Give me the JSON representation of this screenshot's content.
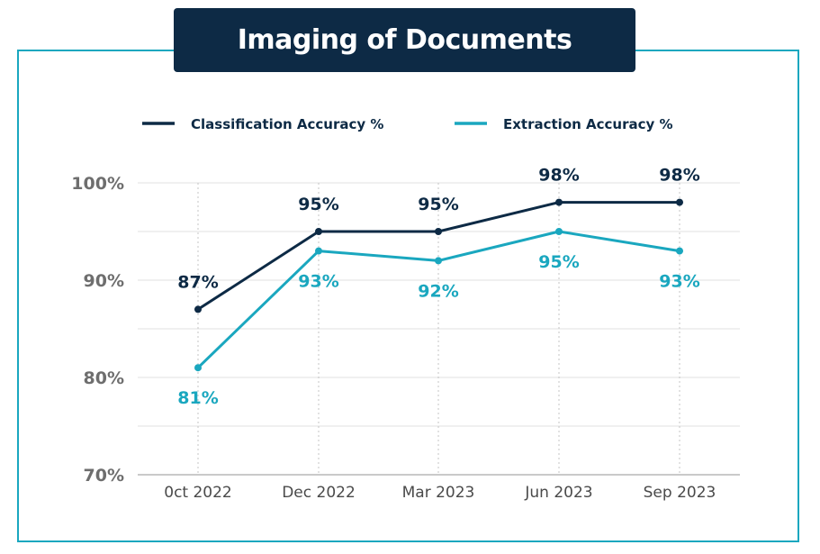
{
  "chart_data": {
    "type": "line",
    "title": "Imaging of Documents",
    "categories": [
      "0ct 2022",
      "Dec 2022",
      "Mar 2023",
      "Jun 2023",
      "Sep 2023"
    ],
    "series": [
      {
        "name": "Classification Accuracy %",
        "values": [
          87,
          95,
          95,
          98,
          98
        ],
        "labels": [
          "87%",
          "95%",
          "95%",
          "98%",
          "98%"
        ],
        "color": "#0d2a45"
      },
      {
        "name": "Extraction Accuracy %",
        "values": [
          81,
          93,
          92,
          95,
          93
        ],
        "labels": [
          "81%",
          "93%",
          "92%",
          "95%",
          "93%"
        ],
        "color": "#1aa7bf"
      }
    ],
    "yticks": [
      "70%",
      "80%",
      "90%",
      "100%"
    ],
    "ylim": [
      70,
      100
    ],
    "grid": true,
    "legend": "top"
  }
}
